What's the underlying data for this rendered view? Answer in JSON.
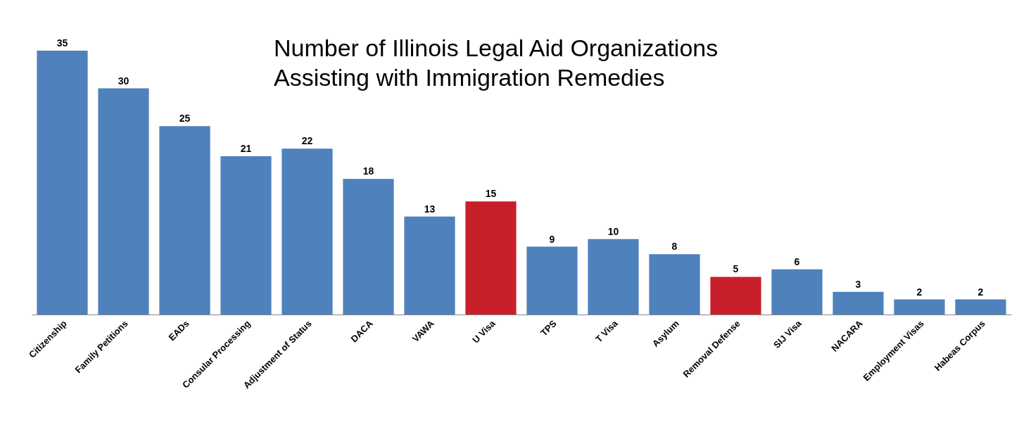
{
  "chart_data": {
    "type": "bar",
    "title": "Number of Illinois Legal Aid Organizations Assisting with Immigration Remedies",
    "categories": [
      "Citizenship",
      "Family Petitions",
      "EADs",
      "Consular Processing",
      "Adjustment of Status",
      "DACA",
      "VAWA",
      "U Visa",
      "TPS",
      "T Visa",
      "Asylum",
      "Removal Defense",
      "SIJ Visa",
      "NACARA",
      "Employment Visas",
      "Habeas Corpus"
    ],
    "values": [
      35,
      30,
      25,
      21,
      22,
      18,
      13,
      15,
      9,
      10,
      8,
      5,
      6,
      3,
      2,
      2
    ],
    "colors": [
      "#4f81bd",
      "#4f81bd",
      "#4f81bd",
      "#4f81bd",
      "#4f81bd",
      "#4f81bd",
      "#4f81bd",
      "#c8202a",
      "#4f81bd",
      "#4f81bd",
      "#4f81bd",
      "#c8202a",
      "#4f81bd",
      "#4f81bd",
      "#4f81bd",
      "#4f81bd"
    ],
    "data_labels": true
  }
}
